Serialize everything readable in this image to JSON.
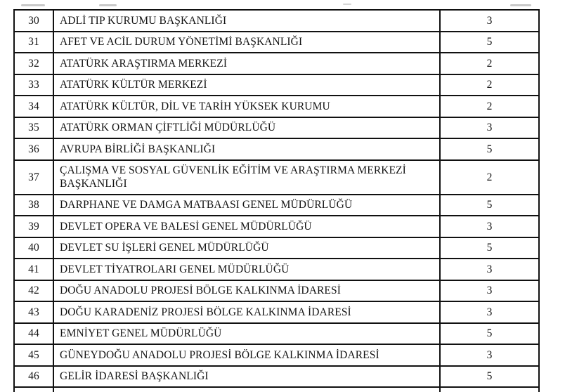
{
  "table": {
    "rows": [
      {
        "no": "30",
        "name": "ADLİ TIP KURUMU BAŞKANLIĞI",
        "value": "3"
      },
      {
        "no": "31",
        "name": "AFET VE ACİL DURUM YÖNETİMİ BAŞKANLIĞI",
        "value": "5"
      },
      {
        "no": "32",
        "name": "ATATÜRK ARAŞTIRMA MERKEZİ",
        "value": "2"
      },
      {
        "no": "33",
        "name": "ATATÜRK KÜLTÜR MERKEZİ",
        "value": "2"
      },
      {
        "no": "34",
        "name": "ATATÜRK KÜLTÜR, DİL VE TARİH YÜKSEK KURUMU",
        "value": "2"
      },
      {
        "no": "35",
        "name": "ATATÜRK ORMAN ÇİFTLİĞİ MÜDÜRLÜĞÜ",
        "value": "3"
      },
      {
        "no": "36",
        "name": "AVRUPA BİRLİĞİ BAŞKANLIĞI",
        "value": "5"
      },
      {
        "no": "37",
        "name": "ÇALIŞMA VE SOSYAL GÜVENLİK EĞİTİM VE ARAŞTIRMA MERKEZİ BAŞKANLIĞI",
        "value": "2"
      },
      {
        "no": "38",
        "name": "DARPHANE VE DAMGA MATBAASI GENEL MÜDÜRLÜĞÜ",
        "value": "5"
      },
      {
        "no": "39",
        "name": "DEVLET OPERA VE BALESİ GENEL MÜDÜRLÜĞÜ",
        "value": "3"
      },
      {
        "no": "40",
        "name": "DEVLET SU İŞLERİ GENEL MÜDÜRLÜĞÜ",
        "value": "5"
      },
      {
        "no": "41",
        "name": "DEVLET TİYATROLARI GENEL MÜDÜRLÜĞÜ",
        "value": "3"
      },
      {
        "no": "42",
        "name": "DOĞU ANADOLU PROJESİ BÖLGE KALKINMA İDARESİ",
        "value": "3"
      },
      {
        "no": "43",
        "name": "DOĞU KARADENİZ PROJESİ BÖLGE KALKINMA İDARESİ",
        "value": "3"
      },
      {
        "no": "44",
        "name": "EMNİYET GENEL MÜDÜRLÜĞÜ",
        "value": "5"
      },
      {
        "no": "45",
        "name": "GÜNEYDOĞU ANADOLU PROJESİ BÖLGE KALKINMA İDARESİ",
        "value": "3"
      },
      {
        "no": "46",
        "name": "GELİR İDARESİ BAŞKANLIĞI",
        "value": "5"
      }
    ]
  }
}
